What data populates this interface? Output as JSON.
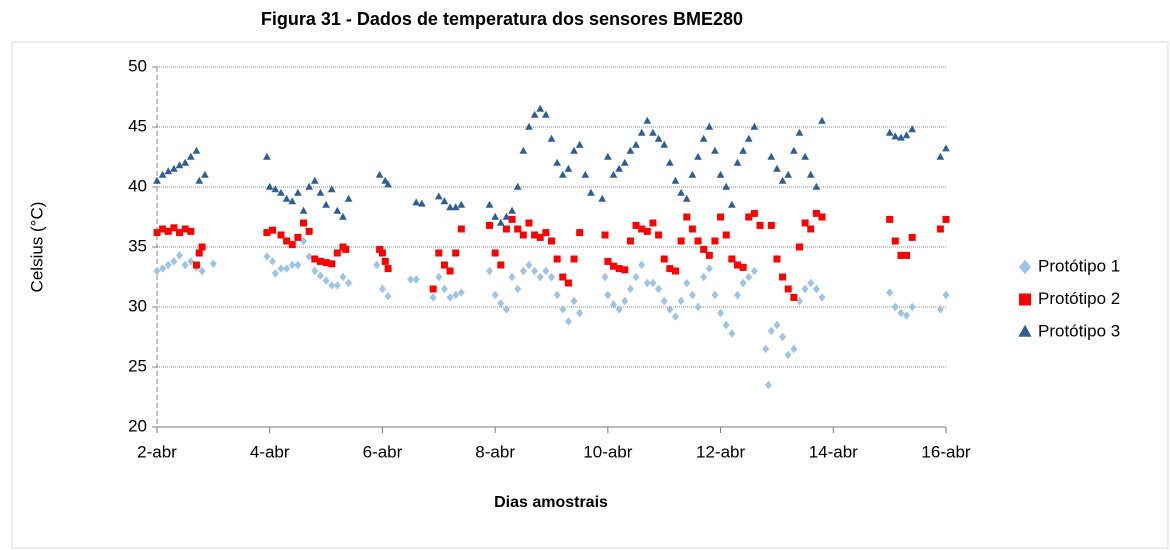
{
  "chart_data": {
    "type": "scatter",
    "title": "Figura 31 - Dados de temperatura dos sensores BME280",
    "x_label": "Dias amostrais",
    "y_label": "Celsius (°C)",
    "xlim": [
      2,
      16
    ],
    "xticks": [
      {
        "value": 2,
        "label": "2-abr"
      },
      {
        "value": 4,
        "label": "4-abr"
      },
      {
        "value": 6,
        "label": "6-abr"
      },
      {
        "value": 8,
        "label": "8-abr"
      },
      {
        "value": 10,
        "label": "10-abr"
      },
      {
        "value": 12,
        "label": "12-abr"
      },
      {
        "value": 14,
        "label": "14-abr"
      },
      {
        "value": 16,
        "label": "16-abr"
      }
    ],
    "ylim": [
      20,
      50
    ],
    "yticks": [
      20,
      25,
      30,
      35,
      40,
      45,
      50
    ],
    "grid": true,
    "legend": "right",
    "series": [
      {
        "name": "Protótipo 1",
        "color": "#9dc3e6",
        "marker": "diamond",
        "x": [
          2.0,
          2.1,
          2.2,
          2.3,
          2.4,
          2.5,
          2.6,
          2.7,
          2.8,
          3.0,
          3.95,
          4.05,
          4.1,
          4.2,
          4.3,
          4.4,
          4.5,
          4.6,
          4.7,
          4.8,
          4.9,
          5.0,
          5.1,
          5.2,
          5.3,
          5.4,
          5.9,
          6.0,
          6.1,
          6.5,
          6.6,
          6.9,
          7.0,
          7.1,
          7.2,
          7.3,
          7.4,
          7.9,
          8.0,
          8.1,
          8.2,
          8.3,
          8.4,
          8.5,
          8.6,
          8.7,
          8.8,
          8.9,
          9.0,
          9.1,
          9.2,
          9.3,
          9.4,
          9.5,
          9.95,
          10.0,
          10.1,
          10.2,
          10.3,
          10.4,
          10.5,
          10.6,
          10.7,
          10.8,
          10.9,
          11.0,
          11.1,
          11.2,
          11.3,
          11.4,
          11.5,
          11.6,
          11.7,
          11.8,
          11.9,
          12.0,
          12.1,
          12.2,
          12.3,
          12.4,
          12.5,
          12.6,
          12.8,
          12.85,
          12.9,
          13.0,
          13.1,
          13.2,
          13.3,
          13.4,
          13.5,
          13.6,
          13.7,
          13.8,
          15.0,
          15.1,
          15.2,
          15.3,
          15.4,
          15.9,
          16.0
        ],
        "values": [
          33,
          33.2,
          33.5,
          33.8,
          34.3,
          33.5,
          33.8,
          33.3,
          33,
          33.6,
          34.2,
          33.8,
          32.8,
          33.2,
          33.2,
          33.5,
          33.5,
          35.5,
          34.2,
          33,
          32.6,
          32.2,
          31.8,
          31.8,
          32.5,
          32,
          33.5,
          31.5,
          30.9,
          32.3,
          32.3,
          30.8,
          32.5,
          31.5,
          30.8,
          31,
          31.2,
          33,
          31,
          30.3,
          29.8,
          32.5,
          31.5,
          33,
          33.5,
          33,
          32.5,
          33,
          32.5,
          31,
          29.8,
          28.8,
          30.5,
          29.5,
          32.5,
          31,
          30.2,
          29.8,
          30.5,
          31.5,
          32.5,
          33.5,
          32,
          32,
          31.5,
          30.5,
          29.8,
          29.2,
          30.5,
          32,
          31,
          30,
          32.5,
          33.2,
          31,
          29.5,
          28.5,
          27.8,
          31,
          32,
          32.5,
          33,
          26.5,
          23.5,
          28,
          28.5,
          27.5,
          26,
          26.5,
          30.5,
          31.5,
          32,
          31.5,
          30.8,
          31.2,
          30,
          29.5,
          29.3,
          30,
          29.8,
          31
        ]
      },
      {
        "name": "Protótipo 2",
        "color": "#ff0000",
        "marker": "square",
        "x": [
          2.0,
          2.1,
          2.2,
          2.3,
          2.4,
          2.5,
          2.6,
          2.7,
          2.75,
          2.8,
          3.95,
          4.05,
          4.2,
          4.3,
          4.4,
          4.5,
          4.6,
          4.7,
          4.8,
          4.9,
          5.0,
          5.1,
          5.2,
          5.3,
          5.35,
          5.95,
          6.0,
          6.05,
          6.1,
          6.9,
          7.0,
          7.1,
          7.2,
          7.3,
          7.4,
          7.9,
          8.0,
          8.1,
          8.2,
          8.3,
          8.4,
          8.5,
          8.6,
          8.7,
          8.8,
          8.9,
          9.0,
          9.1,
          9.2,
          9.3,
          9.4,
          9.5,
          9.95,
          10.0,
          10.1,
          10.2,
          10.3,
          10.4,
          10.5,
          10.6,
          10.7,
          10.8,
          10.9,
          11.0,
          11.1,
          11.2,
          11.3,
          11.4,
          11.5,
          11.6,
          11.7,
          11.8,
          11.9,
          12.0,
          12.1,
          12.2,
          12.3,
          12.4,
          12.5,
          12.6,
          12.7,
          12.9,
          13.0,
          13.1,
          13.2,
          13.3,
          13.4,
          13.5,
          13.6,
          13.7,
          13.8,
          15.0,
          15.1,
          15.2,
          15.3,
          15.4,
          15.9,
          16.0
        ],
        "values": [
          36.2,
          36.5,
          36.3,
          36.6,
          36.2,
          36.5,
          36.3,
          33.5,
          34.5,
          35,
          36.2,
          36.4,
          36,
          35.5,
          35.2,
          35.8,
          37,
          36.3,
          34,
          33.8,
          33.7,
          33.6,
          34.5,
          35,
          34.8,
          34.8,
          34.5,
          33.8,
          33.2,
          31.5,
          34.5,
          33.5,
          33,
          34.5,
          36.5,
          36.8,
          34.5,
          33.5,
          36.5,
          37.3,
          36.5,
          36,
          37,
          36,
          35.8,
          36.2,
          35.5,
          34,
          32.5,
          32,
          34,
          36.2,
          36,
          33.8,
          33.4,
          33.2,
          33.1,
          35.5,
          36.8,
          36.5,
          36.3,
          37,
          36,
          34,
          33.2,
          33,
          35.5,
          37.5,
          36.5,
          35.5,
          34.8,
          34.3,
          35.5,
          37.5,
          36,
          34,
          33.5,
          33.3,
          37.5,
          37.8,
          36.8,
          36.8,
          34,
          32.5,
          31.5,
          30.8,
          35,
          37,
          36.5,
          37.8,
          37.5,
          37.3,
          35.5,
          34.3,
          34.3,
          35.8,
          36.5,
          37.3
        ]
      },
      {
        "name": "Protótipo 3",
        "color": "#2e5e98",
        "marker": "triangle",
        "x": [
          2.0,
          2.1,
          2.2,
          2.3,
          2.4,
          2.5,
          2.6,
          2.7,
          2.75,
          2.85,
          3.95,
          4.0,
          4.1,
          4.2,
          4.3,
          4.4,
          4.5,
          4.6,
          4.7,
          4.8,
          4.9,
          5.0,
          5.1,
          5.2,
          5.3,
          5.4,
          5.95,
          6.05,
          6.1,
          6.6,
          6.7,
          7.0,
          7.1,
          7.2,
          7.3,
          7.4,
          7.9,
          8.0,
          8.1,
          8.2,
          8.3,
          8.4,
          8.5,
          8.6,
          8.7,
          8.8,
          8.9,
          9.0,
          9.1,
          9.2,
          9.3,
          9.4,
          9.5,
          9.6,
          9.7,
          9.9,
          10.0,
          10.1,
          10.2,
          10.3,
          10.4,
          10.5,
          10.6,
          10.7,
          10.8,
          10.9,
          11.0,
          11.1,
          11.2,
          11.3,
          11.4,
          11.5,
          11.6,
          11.7,
          11.8,
          11.9,
          12.0,
          12.1,
          12.2,
          12.3,
          12.4,
          12.5,
          12.6,
          12.9,
          13.0,
          13.1,
          13.2,
          13.3,
          13.4,
          13.5,
          13.6,
          13.7,
          13.8,
          15.0,
          15.1,
          15.2,
          15.3,
          15.4,
          15.9,
          16.0
        ],
        "values": [
          40.5,
          41,
          41.3,
          41.5,
          41.8,
          42,
          42.5,
          43,
          40.5,
          41,
          42.5,
          40,
          39.8,
          39.5,
          39,
          38.8,
          39.5,
          38,
          40,
          40.5,
          39.5,
          38.5,
          39.8,
          38,
          37.5,
          39,
          41,
          40.5,
          40.2,
          38.7,
          38.6,
          39.2,
          38.8,
          38.3,
          38.3,
          38.5,
          38.5,
          37.5,
          37,
          37.5,
          38,
          40,
          43,
          45,
          46,
          46.5,
          46,
          44,
          42,
          41,
          41.5,
          43,
          43.5,
          41,
          39.5,
          39,
          42.5,
          41,
          41.5,
          42,
          43,
          43.5,
          44.5,
          45.5,
          44.5,
          44,
          43.5,
          42,
          40.5,
          39.5,
          39,
          41,
          42.5,
          44,
          45,
          43,
          41,
          40,
          38.5,
          42,
          43,
          44,
          45,
          42.5,
          41.5,
          40.5,
          41,
          43,
          44.5,
          42.5,
          41,
          40,
          45.5,
          44.5,
          44.2,
          44.1,
          44.3,
          44.8,
          42.5,
          43.2
        ]
      }
    ]
  }
}
